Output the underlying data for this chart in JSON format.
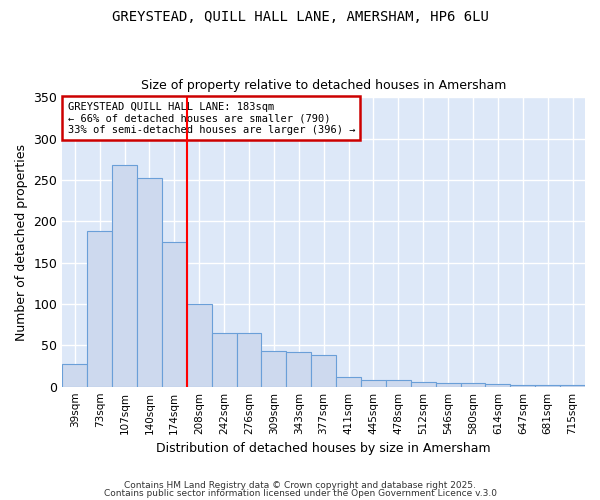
{
  "title1": "GREYSTEAD, QUILL HALL LANE, AMERSHAM, HP6 6LU",
  "title2": "Size of property relative to detached houses in Amersham",
  "xlabel": "Distribution of detached houses by size in Amersham",
  "ylabel": "Number of detached properties",
  "bar_labels": [
    "39sqm",
    "73sqm",
    "107sqm",
    "140sqm",
    "174sqm",
    "208sqm",
    "242sqm",
    "276sqm",
    "309sqm",
    "343sqm",
    "377sqm",
    "411sqm",
    "445sqm",
    "478sqm",
    "512sqm",
    "546sqm",
    "580sqm",
    "614sqm",
    "647sqm",
    "681sqm",
    "715sqm"
  ],
  "bar_values": [
    28,
    188,
    268,
    253,
    175,
    100,
    65,
    65,
    43,
    42,
    38,
    12,
    8,
    8,
    6,
    5,
    4,
    3,
    2,
    2,
    2
  ],
  "bar_color": "#cdd9ee",
  "bar_edge_color": "#6a9fd8",
  "plot_bg_color": "#dde8f8",
  "fig_bg_color": "#ffffff",
  "grid_color": "#ffffff",
  "red_line_x": 4.5,
  "annotation_text": "GREYSTEAD QUILL HALL LANE: 183sqm\n← 66% of detached houses are smaller (790)\n33% of semi-detached houses are larger (396) →",
  "annotation_box_color": "#ffffff",
  "annotation_box_edge": "#cc0000",
  "footnote1": "Contains HM Land Registry data © Crown copyright and database right 2025.",
  "footnote2": "Contains public sector information licensed under the Open Government Licence v.3.0",
  "ylim": [
    0,
    350
  ],
  "yticks": [
    0,
    50,
    100,
    150,
    200,
    250,
    300,
    350
  ]
}
